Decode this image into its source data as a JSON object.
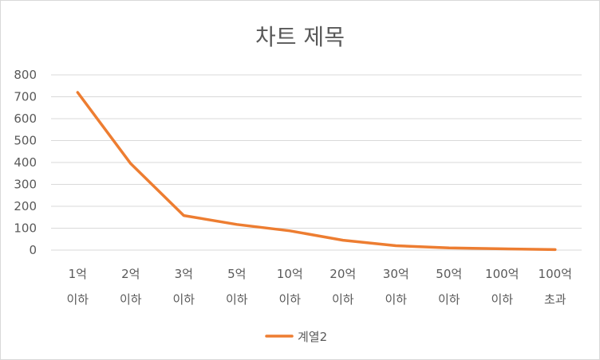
{
  "chart_data": {
    "type": "line",
    "title": "차트 제목",
    "categories": [
      [
        "1억",
        "이하"
      ],
      [
        "2억",
        "이하"
      ],
      [
        "3억",
        "이하"
      ],
      [
        "5억",
        "이하"
      ],
      [
        "10억",
        "이하"
      ],
      [
        "20억",
        "이하"
      ],
      [
        "30억",
        "이하"
      ],
      [
        "50억",
        "이하"
      ],
      [
        "100억",
        "이하"
      ],
      [
        "100억",
        "초과"
      ]
    ],
    "series": [
      {
        "name": "계열2",
        "color": "#ed7d31",
        "values": [
          720,
          395,
          158,
          117,
          88,
          45,
          20,
          10,
          6,
          2
        ]
      }
    ],
    "ylim": [
      0,
      800
    ],
    "yticks": [
      0,
      100,
      200,
      300,
      400,
      500,
      600,
      700,
      800
    ],
    "grid": true,
    "legend_position": "bottom",
    "gridline_color": "#d9d9d9",
    "text_color": "#595959"
  }
}
